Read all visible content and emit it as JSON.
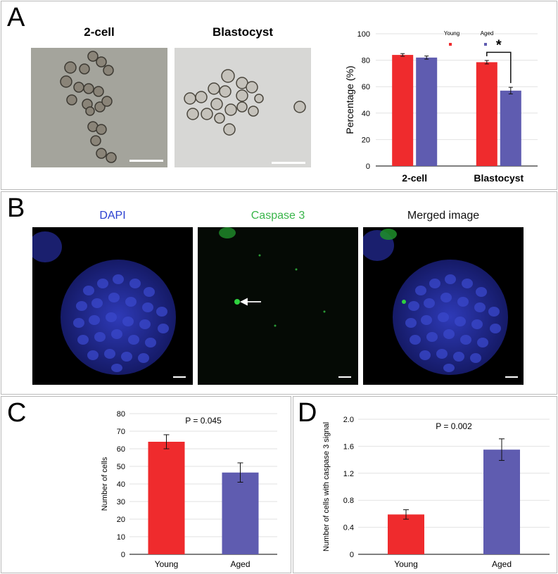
{
  "panel_a": {
    "label": "A",
    "micro_titles": [
      "2-cell",
      "Blastocyst"
    ],
    "significance": "*"
  },
  "panel_b": {
    "label": "B",
    "titles": [
      "DAPI",
      "Caspase 3",
      "Merged image"
    ],
    "title_colors": [
      "#2a3fd0",
      "#39b54a",
      "#111111"
    ]
  },
  "panel_c": {
    "label": "C",
    "pvalue": "P = 0.045"
  },
  "panel_d": {
    "label": "D",
    "pvalue": "P = 0.002"
  },
  "colors": {
    "young": "#ef2b2d",
    "aged": "#5f5cb0"
  },
  "chart_data": [
    {
      "id": "A",
      "type": "bar",
      "categories": [
        "2-cell",
        "Blastocyst"
      ],
      "series": [
        {
          "name": "Young",
          "values": [
            84,
            78.5
          ],
          "errors": [
            1,
            1.3
          ]
        },
        {
          "name": "Aged",
          "values": [
            82,
            57
          ],
          "errors": [
            1.2,
            2.5
          ]
        }
      ],
      "ylabel": "Percentage (%)",
      "ylim": [
        0,
        100
      ],
      "yticks": [
        0,
        20,
        40,
        60,
        80,
        100
      ],
      "legend": "top"
    },
    {
      "id": "C",
      "type": "bar",
      "categories": [
        "Young",
        "Aged"
      ],
      "values": [
        64,
        46.5
      ],
      "errors": [
        4,
        5.5
      ],
      "ylabel": "Number of cells",
      "ylim": [
        0,
        80
      ],
      "yticks": [
        0,
        10,
        20,
        30,
        40,
        50,
        60,
        70,
        80
      ]
    },
    {
      "id": "D",
      "type": "bar",
      "categories": [
        "Young",
        "Aged"
      ],
      "values": [
        0.59,
        1.55
      ],
      "errors": [
        0.07,
        0.16
      ],
      "ylabel": "Number of cells with caspase 3 signal",
      "ylim": [
        0,
        2.0
      ],
      "yticks": [
        "0",
        "0.4",
        "0.8",
        "1.2",
        "1.6",
        "2.0"
      ]
    }
  ]
}
